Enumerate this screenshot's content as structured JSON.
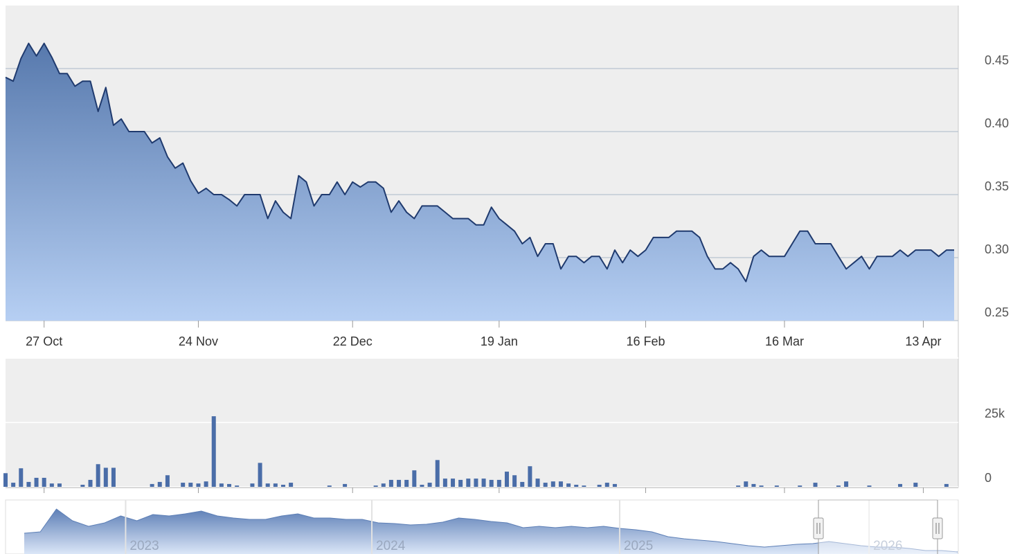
{
  "chart_data": [
    {
      "type": "area",
      "color": "#1f3a6e",
      "fill_top": "#5779ad",
      "fill_bottom": "#b6cff3",
      "values": [
        0.443,
        0.44,
        0.458,
        0.47,
        0.46,
        0.47,
        0.459,
        0.446,
        0.446,
        0.436,
        0.44,
        0.44,
        0.416,
        0.435,
        0.405,
        0.41,
        0.4,
        0.4,
        0.4,
        0.391,
        0.395,
        0.38,
        0.371,
        0.375,
        0.361,
        0.351,
        0.355,
        0.35,
        0.35,
        0.346,
        0.341,
        0.35,
        0.35,
        0.35,
        0.331,
        0.345,
        0.336,
        0.331,
        0.365,
        0.36,
        0.341,
        0.35,
        0.35,
        0.36,
        0.35,
        0.36,
        0.356,
        0.36,
        0.36,
        0.355,
        0.336,
        0.345,
        0.336,
        0.331,
        0.341,
        0.341,
        0.341,
        0.336,
        0.331,
        0.331,
        0.331,
        0.326,
        0.326,
        0.34,
        0.331,
        0.326,
        0.321,
        0.311,
        0.316,
        0.301,
        0.311,
        0.311,
        0.291,
        0.301,
        0.301,
        0.296,
        0.301,
        0.301,
        0.291,
        0.306,
        0.296,
        0.306,
        0.301,
        0.306,
        0.316,
        0.316,
        0.316,
        0.321,
        0.321,
        0.321,
        0.316,
        0.301,
        0.291,
        0.291,
        0.296,
        0.291,
        0.281,
        0.301,
        0.306,
        0.301,
        0.301,
        0.301,
        0.311,
        0.321,
        0.321,
        0.311,
        0.311,
        0.311,
        0.301,
        0.291,
        0.296,
        0.301,
        0.291,
        0.301,
        0.301,
        0.301,
        0.306,
        0.301,
        0.306,
        0.306,
        0.306,
        0.301,
        0.306,
        0.306
      ],
      "xlim": [
        0,
        123
      ],
      "xticks": [
        {
          "value": 5,
          "label": "27 Oct"
        },
        {
          "value": 25,
          "label": "24 Nov"
        },
        {
          "value": 45,
          "label": "22 Dec"
        },
        {
          "value": 64,
          "label": "19 Jan"
        },
        {
          "value": 83,
          "label": "16 Feb"
        },
        {
          "value": 101,
          "label": "16 Mar"
        },
        {
          "value": 119,
          "label": "13 Apr"
        }
      ],
      "ylim": [
        0.25,
        0.5
      ],
      "yticks": [
        0.25,
        {
          "value": 0.3,
          "label": "0.30"
        },
        0.35,
        {
          "value": 0.4,
          "label": "0.40"
        },
        0.45
      ],
      "grid": true
    },
    {
      "type": "bar",
      "color": "#4a6da8",
      "values": [
        5300,
        1600,
        7200,
        1900,
        3500,
        3500,
        1300,
        1300,
        0,
        0,
        800,
        2700,
        8800,
        7400,
        7400,
        0,
        0,
        0,
        0,
        1100,
        1900,
        4500,
        0,
        1600,
        1600,
        1300,
        2100,
        27400,
        1300,
        1100,
        500,
        0,
        1300,
        9300,
        1300,
        1300,
        800,
        1600,
        0,
        0,
        0,
        0,
        500,
        0,
        1100,
        0,
        0,
        0,
        500,
        1300,
        2700,
        2700,
        2700,
        6400,
        800,
        1600,
        10400,
        3200,
        3200,
        2700,
        3200,
        3200,
        3200,
        2700,
        2700,
        5900,
        4500,
        1900,
        8000,
        3200,
        1600,
        2100,
        2100,
        1300,
        800,
        500,
        0,
        800,
        1600,
        1100,
        0,
        0,
        0,
        0,
        0,
        0,
        0,
        0,
        0,
        0,
        0,
        0,
        0,
        0,
        0,
        500,
        2100,
        1100,
        500,
        0,
        500,
        0,
        0,
        500,
        0,
        1600,
        0,
        0,
        500,
        2100,
        0,
        0,
        500,
        0,
        0,
        0,
        1100,
        0,
        1600,
        0,
        0,
        0,
        1100,
        0
      ],
      "ylim": [
        0,
        50000
      ],
      "yticks": [
        0,
        {
          "value": 25000,
          "label": "25k"
        }
      ],
      "grid": true
    },
    {
      "type": "area",
      "color": "#5d7fb6",
      "fill_top": "#5d7fb6",
      "fill_bottom": "#dbe6f7",
      "values": [
        0.6,
        0.64,
        1.3,
        0.96,
        0.8,
        0.9,
        1.1,
        0.96,
        1.14,
        1.1,
        1.16,
        1.24,
        1.1,
        1.04,
        1,
        1,
        1.1,
        1.16,
        1.04,
        1.04,
        1,
        1,
        0.9,
        0.88,
        0.84,
        0.86,
        0.92,
        1.04,
        1,
        0.94,
        0.9,
        0.76,
        0.8,
        0.76,
        0.8,
        0.76,
        0.8,
        0.74,
        0.7,
        0.64,
        0.5,
        0.44,
        0.4,
        0.36,
        0.3,
        0.24,
        0.2,
        0.24,
        0.28,
        0.3,
        0.36,
        0.3,
        0.24,
        0.2,
        0.2,
        0.16,
        0.1,
        0.1,
        0.06
      ],
      "xlim": [
        0,
        58
      ],
      "ylim": [
        0,
        1.56
      ],
      "xticks": [
        {
          "value": 6.3,
          "label": "2023"
        },
        {
          "value": 21.6,
          "label": "2024"
        },
        {
          "value": 37,
          "label": "2025"
        },
        {
          "value": 52.5,
          "label": "2026"
        }
      ]
    }
  ]
}
